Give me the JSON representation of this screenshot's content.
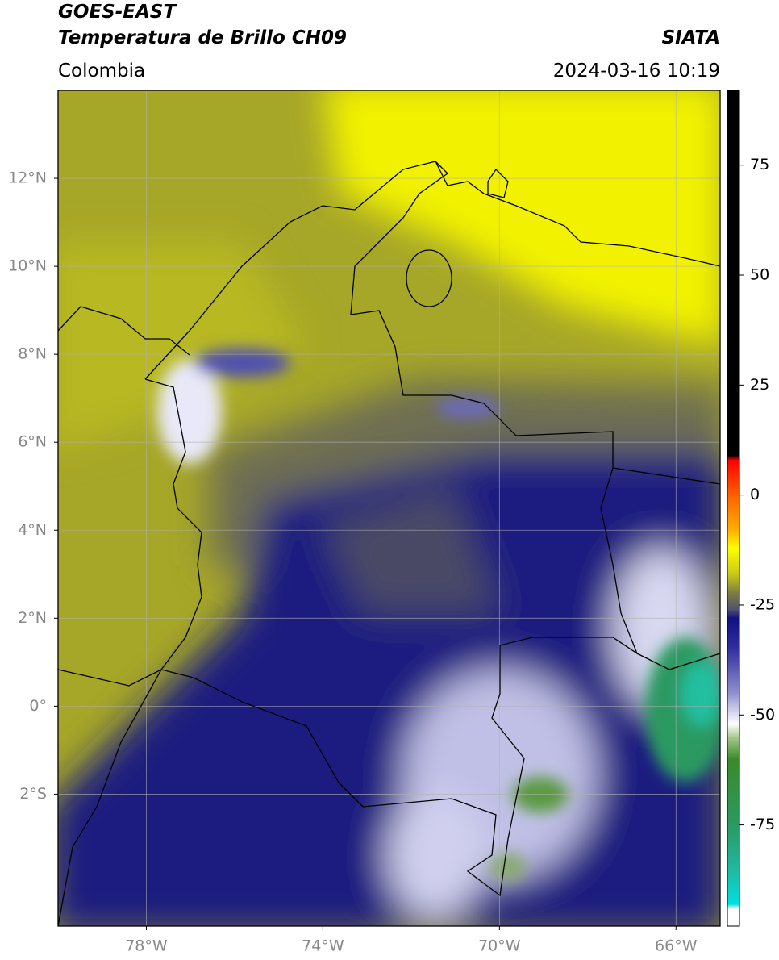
{
  "header": {
    "satellite": "GOES-EAST",
    "product": "Temperatura de Brillo CH09",
    "source": "SIATA",
    "region": "Colombia",
    "datetime": "2024-03-16 10:19"
  },
  "map": {
    "lon_range": [
      -80,
      -65
    ],
    "lat_range": [
      -5,
      14
    ],
    "grid": true,
    "lon_ticks": [
      {
        "value": -78,
        "label": "78°W"
      },
      {
        "value": -74,
        "label": "74°W"
      },
      {
        "value": -70,
        "label": "70°W"
      },
      {
        "value": -66,
        "label": "66°W"
      }
    ],
    "lat_ticks": [
      {
        "value": 12,
        "label": "12°N"
      },
      {
        "value": 10,
        "label": "10°N"
      },
      {
        "value": 8,
        "label": "8°N"
      },
      {
        "value": 6,
        "label": "6°N"
      },
      {
        "value": 4,
        "label": "4°N"
      },
      {
        "value": 2,
        "label": "2°N"
      },
      {
        "value": 0,
        "label": "0°"
      },
      {
        "value": -2,
        "label": "2°S"
      }
    ]
  },
  "colorbar": {
    "range": [
      -98,
      92
    ],
    "ticks": [
      75,
      50,
      25,
      0,
      -25,
      -50,
      -75
    ],
    "stops": [
      {
        "value": -98,
        "color": "#ffffff"
      },
      {
        "value": -94,
        "color": "#ffffff"
      },
      {
        "value": -93,
        "color": "#00e0e0"
      },
      {
        "value": -85,
        "color": "#20b8a0"
      },
      {
        "value": -75,
        "color": "#2a9a60"
      },
      {
        "value": -60,
        "color": "#3a8a2a"
      },
      {
        "value": -55,
        "color": "#a8c890"
      },
      {
        "value": -52,
        "color": "#ffffff"
      },
      {
        "value": -45,
        "color": "#9090d0"
      },
      {
        "value": -35,
        "color": "#3030a0"
      },
      {
        "value": -28,
        "color": "#101080"
      },
      {
        "value": -26,
        "color": "#505070"
      },
      {
        "value": -22,
        "color": "#808040"
      },
      {
        "value": -18,
        "color": "#c8c818"
      },
      {
        "value": -12,
        "color": "#ffff00"
      },
      {
        "value": -8,
        "color": "#ffb000"
      },
      {
        "value": 0,
        "color": "#ff6000"
      },
      {
        "value": 8,
        "color": "#ff0000"
      },
      {
        "value": 9,
        "color": "#000000"
      },
      {
        "value": 92,
        "color": "#000000"
      }
    ]
  }
}
